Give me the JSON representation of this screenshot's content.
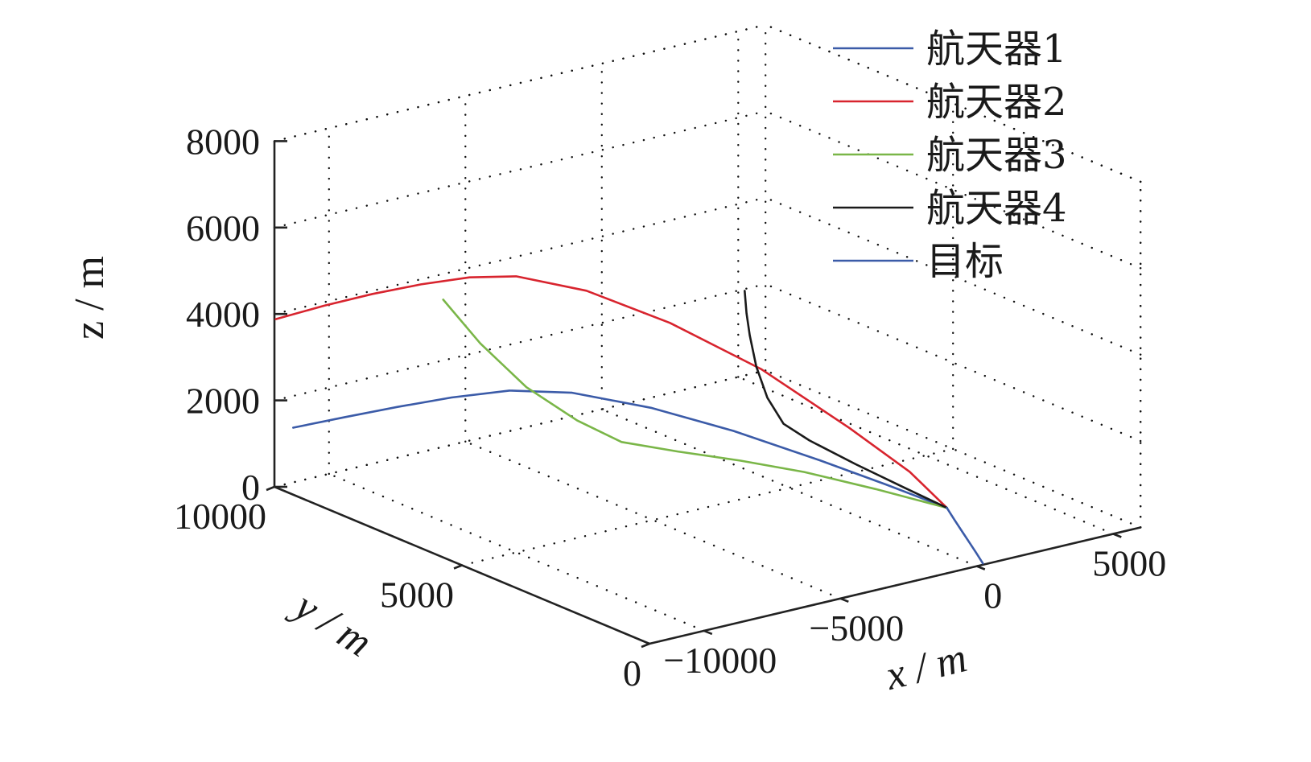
{
  "chart_data": {
    "type": "line",
    "projection": "3d",
    "grid": true,
    "legend_position": "top-right",
    "xlim": [
      -12000,
      6000
    ],
    "ylim": [
      0,
      10000
    ],
    "zlim": [
      0,
      8000
    ],
    "xlabel": "x / m",
    "ylabel": "y / m",
    "zlabel": "z / m",
    "x_ticks": [
      {
        "value": -10000,
        "label": "−10000"
      },
      {
        "value": -5000,
        "label": "−5000"
      },
      {
        "value": 0,
        "label": "0"
      },
      {
        "value": 5000,
        "label": "5000"
      }
    ],
    "y_ticks": [
      {
        "value": 0,
        "label": "0"
      },
      {
        "value": 5000,
        "label": "5000"
      },
      {
        "value": 10000,
        "label": "10000"
      }
    ],
    "z_ticks": [
      {
        "value": 0,
        "label": "0"
      },
      {
        "value": 2000,
        "label": "2000"
      },
      {
        "value": 4000,
        "label": "4000"
      },
      {
        "value": 6000,
        "label": "6000"
      },
      {
        "value": 8000,
        "label": "8000"
      }
    ],
    "series": [
      {
        "name": "航天器1",
        "color": "#3b5ba8",
        "points": [
          [
            -12000,
            9500,
            1550
          ],
          [
            -10500,
            9200,
            1680
          ],
          [
            -9000,
            8900,
            1800
          ],
          [
            -7500,
            8550,
            1920
          ],
          [
            -6000,
            8100,
            2020
          ],
          [
            -4800,
            7300,
            2080
          ],
          [
            -3700,
            6000,
            2040
          ],
          [
            -2600,
            4600,
            1850
          ],
          [
            -1500,
            3100,
            1550
          ],
          [
            -700,
            1900,
            1300
          ],
          [
            0,
            800,
            1060
          ]
        ]
      },
      {
        "name": "航天器2",
        "color": "#d8242e",
        "points": [
          [
            -12500,
            9600,
            4100
          ],
          [
            -11000,
            9400,
            4260
          ],
          [
            -9500,
            9200,
            4380
          ],
          [
            -8000,
            9000,
            4450
          ],
          [
            -6500,
            8800,
            4460
          ],
          [
            -5200,
            8500,
            4400
          ],
          [
            -4000,
            7500,
            4250
          ],
          [
            -3000,
            6000,
            3900
          ],
          [
            -2000,
            4300,
            3300
          ],
          [
            -1100,
            2600,
            2420
          ],
          [
            -400,
            1500,
            1700
          ],
          [
            0,
            800,
            1060
          ]
        ]
      },
      {
        "name": "航天器3",
        "color": "#7ab648",
        "points": [
          [
            -8700,
            7900,
            4600
          ],
          [
            -8100,
            7350,
            3700
          ],
          [
            -7300,
            6700,
            2800
          ],
          [
            -6400,
            6000,
            2150
          ],
          [
            -5600,
            5400,
            1750
          ],
          [
            -4500,
            4700,
            1620
          ],
          [
            -3300,
            3900,
            1520
          ],
          [
            -2200,
            3000,
            1420
          ],
          [
            -1100,
            1900,
            1260
          ],
          [
            0,
            800,
            1060
          ]
        ]
      },
      {
        "name": "航天器4",
        "color": "#1a1a1a",
        "points": [
          [
            -2600,
            4300,
            5200
          ],
          [
            -2600,
            4250,
            4700
          ],
          [
            -2550,
            4200,
            4200
          ],
          [
            -2450,
            4100,
            3500
          ],
          [
            -2250,
            3950,
            2800
          ],
          [
            -2000,
            3700,
            2250
          ],
          [
            -1600,
            3300,
            1950
          ],
          [
            -1000,
            2500,
            1600
          ],
          [
            -450,
            1600,
            1300
          ],
          [
            0,
            800,
            1060
          ]
        ]
      },
      {
        "name": "目标",
        "color": "#3b5ba8",
        "points": [
          [
            0,
            800,
            1060
          ],
          [
            60,
            640,
            830
          ],
          [
            130,
            480,
            600
          ],
          [
            200,
            330,
            380
          ],
          [
            250,
            190,
            190
          ],
          [
            300,
            60,
            0
          ]
        ]
      }
    ]
  }
}
